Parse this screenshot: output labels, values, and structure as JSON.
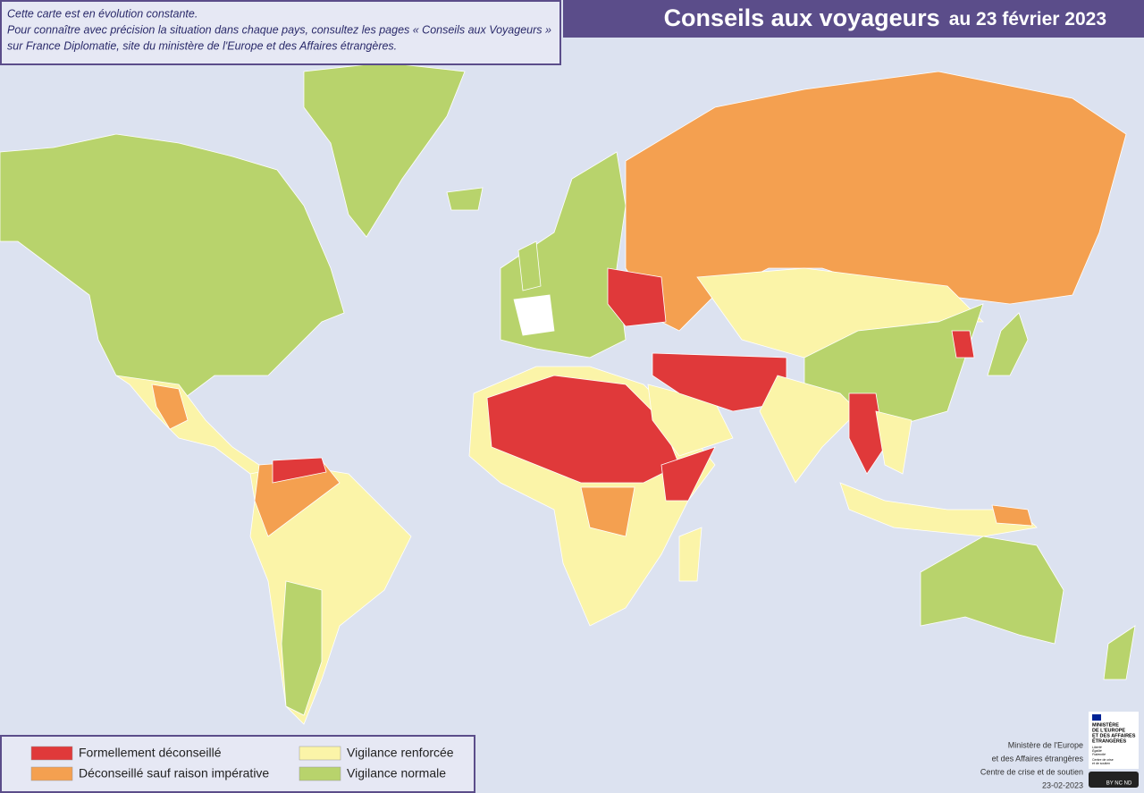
{
  "header": {
    "title": "Conseils aux voyageurs",
    "date": "au 23 février 2023"
  },
  "note": {
    "lines": [
      "Cette carte est en évolution constante.",
      "Pour connaître avec précision la situation dans chaque pays, consultez les pages « Conseils aux Voyageurs »",
      "sur France Diplomatie, site du ministère de l'Europe et des Affaires étrangères."
    ]
  },
  "legend": {
    "items": [
      {
        "label": "Formellement déconseillé",
        "color": "#e0393a"
      },
      {
        "label": "Déconseillé sauf raison impérative",
        "color": "#f4a050"
      },
      {
        "label": "Vigilance renforcée",
        "color": "#fbf4a8"
      },
      {
        "label": "Vigilance normale",
        "color": "#b8d36c"
      }
    ]
  },
  "credits": {
    "lines": [
      "Ministère de l'Europe",
      "et des Affaires étrangères",
      "Centre de crise et de soutien",
      "23-02-2023"
    ]
  },
  "logo": {
    "lines": [
      "MINISTÈRE",
      "DE L'EUROPE",
      "ET DES AFFAIRES",
      "ÉTRANGÈRES"
    ],
    "motto": [
      "Liberté",
      "Égalité",
      "Fraternité"
    ],
    "unit": [
      "Centre de crise",
      "et de soutien"
    ]
  },
  "license": "BY NC ND"
}
